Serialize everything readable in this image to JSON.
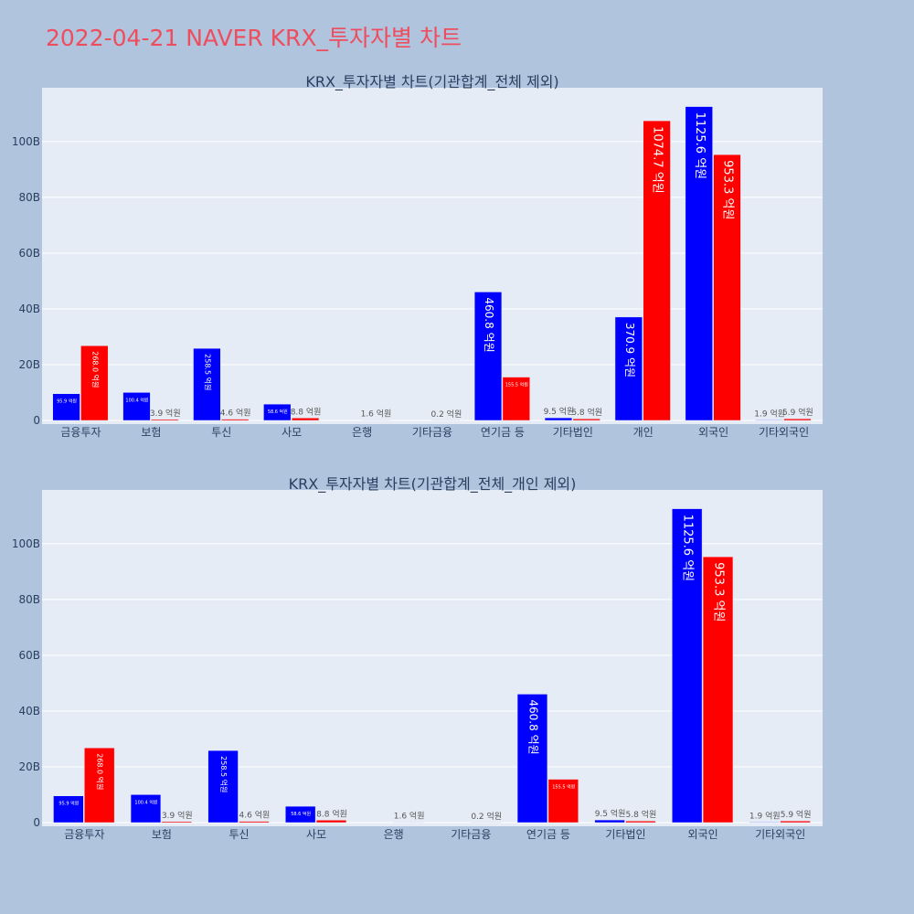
{
  "title": "2022-04-21 NAVER KRX_투자자별 차트",
  "colors": {
    "buy": "#0000ff",
    "sell": "#ff0000",
    "plot_bg": "#e5ecf6",
    "page_bg": "#b0c4de",
    "title": "#ee4d5e"
  },
  "chart_data": [
    {
      "type": "bar",
      "title": "KRX_투자자별 차트(기관합계_전체 제외)",
      "ylim": [
        0,
        118
      ],
      "yticks": [
        {
          "value": 0,
          "label": "0"
        },
        {
          "value": 20,
          "label": "20B"
        },
        {
          "value": 40,
          "label": "40B"
        },
        {
          "value": 60,
          "label": "60B"
        },
        {
          "value": 80,
          "label": "80B"
        },
        {
          "value": 100,
          "label": "100B"
        }
      ],
      "categories": [
        "금융투자",
        "보험",
        "투신",
        "사모",
        "은행",
        "기타금융",
        "연기금 등",
        "기타법인",
        "개인",
        "외국인",
        "기타외국인"
      ],
      "series": [
        {
          "color": "#0000ff",
          "values": [
            9.59,
            10.04,
            25.85,
            5.86,
            0.0,
            0.0,
            46.08,
            0.95,
            37.09,
            112.56,
            0.19
          ],
          "labels": [
            "95.9 억원",
            "100.4 억원",
            "258.5 억원",
            "58.6 억원",
            "",
            "",
            "460.8 억원",
            "9.5 억원",
            "370.9 억원",
            "1125.6 억원",
            "1.9 억원"
          ]
        },
        {
          "color": "#ff0000",
          "values": [
            26.8,
            0.39,
            0.46,
            0.88,
            0.16,
            0.02,
            15.55,
            0.58,
            107.47,
            95.33,
            0.59
          ],
          "labels": [
            "268.0 억원",
            "3.9 억원",
            "4.6 억원",
            "8.8 억원",
            "1.6 억원",
            "0.2 억원",
            "155.5 억원",
            "5.8 억원",
            "1074.7 억원",
            "953.3 억원",
            "5.9 억원"
          ]
        }
      ]
    },
    {
      "type": "bar",
      "title": "KRX_투자자별 차트(기관합계_전체_개인 제외)",
      "ylim": [
        0,
        118
      ],
      "yticks": [
        {
          "value": 0,
          "label": "0"
        },
        {
          "value": 20,
          "label": "20B"
        },
        {
          "value": 40,
          "label": "40B"
        },
        {
          "value": 60,
          "label": "60B"
        },
        {
          "value": 80,
          "label": "80B"
        },
        {
          "value": 100,
          "label": "100B"
        }
      ],
      "categories": [
        "금융투자",
        "보험",
        "투신",
        "사모",
        "은행",
        "기타금융",
        "연기금 등",
        "기타법인",
        "외국인",
        "기타외국인"
      ],
      "series": [
        {
          "color": "#0000ff",
          "values": [
            9.59,
            10.04,
            25.85,
            5.86,
            0.0,
            0.0,
            46.08,
            0.95,
            112.56,
            0.19
          ],
          "labels": [
            "95.9 억원",
            "100.4 억원",
            "258.5 억원",
            "58.6 억원",
            "",
            "",
            "460.8 억원",
            "9.5 억원",
            "1125.6 억원",
            "1.9 억원"
          ]
        },
        {
          "color": "#ff0000",
          "values": [
            26.8,
            0.39,
            0.46,
            0.88,
            0.16,
            0.02,
            15.55,
            0.58,
            95.33,
            0.59
          ],
          "labels": [
            "268.0 억원",
            "3.9 억원",
            "4.6 억원",
            "8.8 억원",
            "1.6 억원",
            "0.2 억원",
            "155.5 억원",
            "5.8 억원",
            "953.3 억원",
            "5.9 억원"
          ]
        }
      ]
    }
  ]
}
